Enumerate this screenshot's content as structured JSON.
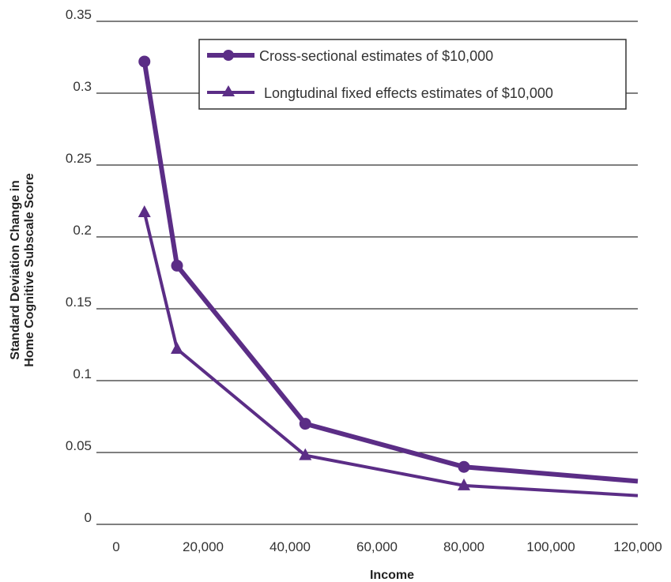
{
  "chart_data": {
    "type": "line",
    "title": "",
    "xlabel": "Income",
    "ylabel_lines": [
      "Standard Deviation Change in",
      "Home Cognitive Subscale Score"
    ],
    "xlim": [
      0,
      120000
    ],
    "ylim": [
      0,
      0.35
    ],
    "x_ticks": [
      0,
      20000,
      40000,
      60000,
      80000,
      100000,
      120000
    ],
    "x_tick_labels": [
      "0",
      "20,000",
      "40,000",
      "60,000",
      "80,000",
      "100,000",
      "120,000"
    ],
    "y_ticks": [
      0,
      0.05,
      0.1,
      0.15,
      0.2,
      0.25,
      0.3,
      0.35
    ],
    "y_tick_labels": [
      "0",
      "0.05",
      "0.1",
      "0.15",
      "0.2",
      "0.25",
      "0.3",
      "0.35"
    ],
    "grid": "horizontal",
    "legend_position": "top-right",
    "color": "#5b2d86",
    "series": [
      {
        "name": "Cross-sectional estimates of $10,000",
        "marker": "circle",
        "points": [
          [
            6500,
            0.322
          ],
          [
            14000,
            0.18
          ],
          [
            43500,
            0.07
          ],
          [
            80000,
            0.04
          ],
          [
            120000,
            0.03
          ]
        ]
      },
      {
        "name": "Longtudinal fixed effects estimates of $10,000",
        "marker": "triangle",
        "points": [
          [
            6500,
            0.217
          ],
          [
            14000,
            0.122
          ],
          [
            43500,
            0.048
          ],
          [
            80000,
            0.027
          ],
          [
            120000,
            0.02
          ]
        ]
      }
    ]
  }
}
